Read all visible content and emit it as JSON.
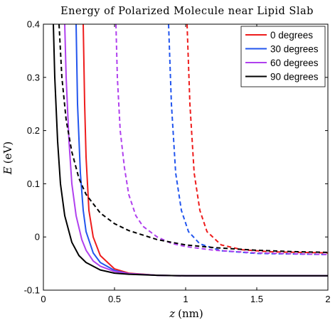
{
  "chart_data": {
    "type": "line",
    "title": "Energy of Polarized Molecule near Lipid Slab",
    "xlabel_var": "z",
    "xlabel_unit": "(nm)",
    "ylabel_var": "E",
    "ylabel_unit": "(eV)",
    "xlim": [
      0,
      2
    ],
    "ylim": [
      -0.1,
      0.4
    ],
    "xticks": [
      0,
      0.5,
      1,
      1.5,
      2
    ],
    "xtick_labels": [
      "0",
      "0.5",
      "1",
      "1.5",
      "2"
    ],
    "yticks": [
      -0.1,
      0,
      0.1,
      0.2,
      0.3,
      0.4
    ],
    "ytick_labels": [
      "-0.1",
      "0",
      "0.1",
      "0.2",
      "0.3",
      "0.4"
    ],
    "grid": false,
    "legend_position": "top-right",
    "series": [
      {
        "name": "0 degrees",
        "color": "#ee1c1c",
        "solid": {
          "x": [
            0.28,
            0.29,
            0.3,
            0.32,
            0.35,
            0.4,
            0.5,
            0.6,
            0.8,
            1.0,
            1.5,
            2.0
          ],
          "y": [
            0.4,
            0.25,
            0.15,
            0.05,
            0.0,
            -0.035,
            -0.06,
            -0.068,
            -0.072,
            -0.073,
            -0.073,
            -0.073
          ]
        },
        "dashed": {
          "x": [
            1.01,
            1.03,
            1.06,
            1.1,
            1.15,
            1.25,
            1.4,
            1.6,
            1.8,
            2.0
          ],
          "y": [
            0.4,
            0.25,
            0.12,
            0.05,
            0.01,
            -0.015,
            -0.024,
            -0.028,
            -0.029,
            -0.03
          ]
        }
      },
      {
        "name": "30 degrees",
        "color": "#2255ee",
        "solid": {
          "x": [
            0.23,
            0.24,
            0.26,
            0.28,
            0.3,
            0.35,
            0.4,
            0.5,
            0.6,
            0.8,
            1.0,
            1.5,
            2.0
          ],
          "y": [
            0.4,
            0.25,
            0.12,
            0.05,
            0.01,
            -0.03,
            -0.048,
            -0.063,
            -0.069,
            -0.072,
            -0.073,
            -0.073,
            -0.073
          ]
        },
        "dashed": {
          "x": [
            0.88,
            0.9,
            0.93,
            0.97,
            1.02,
            1.1,
            1.25,
            1.5,
            1.75,
            2.0
          ],
          "y": [
            0.4,
            0.25,
            0.12,
            0.05,
            0.01,
            -0.013,
            -0.026,
            -0.031,
            -0.032,
            -0.033
          ]
        }
      },
      {
        "name": "60 degrees",
        "color": "#b040ee",
        "solid": {
          "x": [
            0.15,
            0.16,
            0.18,
            0.2,
            0.23,
            0.27,
            0.3,
            0.35,
            0.4,
            0.5,
            0.6,
            0.8,
            1.0,
            1.5,
            2.0
          ],
          "y": [
            0.4,
            0.3,
            0.18,
            0.1,
            0.04,
            -0.005,
            -0.025,
            -0.045,
            -0.055,
            -0.065,
            -0.069,
            -0.072,
            -0.073,
            -0.073,
            -0.073
          ]
        },
        "dashed": {
          "x": [
            0.51,
            0.52,
            0.54,
            0.57,
            0.6,
            0.65,
            0.7,
            0.8,
            0.9,
            1.0,
            1.2,
            1.5,
            1.8,
            2.0
          ],
          "y": [
            0.4,
            0.3,
            0.2,
            0.13,
            0.08,
            0.04,
            0.02,
            0.0,
            -0.012,
            -0.018,
            -0.025,
            -0.03,
            -0.032,
            -0.033
          ]
        }
      },
      {
        "name": "90 degrees",
        "color": "#000000",
        "solid": {
          "x": [
            0.07,
            0.08,
            0.1,
            0.12,
            0.15,
            0.2,
            0.25,
            0.3,
            0.4,
            0.5,
            0.6,
            0.8,
            1.0,
            1.5,
            2.0
          ],
          "y": [
            0.4,
            0.3,
            0.18,
            0.1,
            0.04,
            -0.01,
            -0.035,
            -0.048,
            -0.062,
            -0.068,
            -0.07,
            -0.072,
            -0.073,
            -0.073,
            -0.073
          ]
        },
        "dashed": {
          "x": [
            0.11,
            0.13,
            0.16,
            0.2,
            0.25,
            0.3,
            0.4,
            0.5,
            0.6,
            0.8,
            1.0,
            1.2,
            1.5,
            1.8,
            2.0
          ],
          "y": [
            0.4,
            0.3,
            0.22,
            0.16,
            0.11,
            0.08,
            0.045,
            0.025,
            0.012,
            -0.005,
            -0.015,
            -0.02,
            -0.025,
            -0.028,
            -0.029
          ]
        }
      }
    ]
  }
}
